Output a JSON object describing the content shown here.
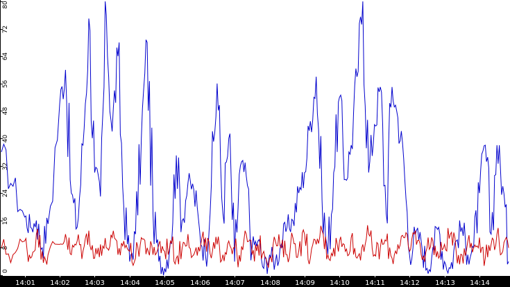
{
  "chart_data": {
    "type": "line",
    "ylim": [
      0,
      80
    ],
    "y_ticks": [
      0,
      8,
      16,
      24,
      32,
      40,
      48,
      56,
      64,
      72,
      80
    ],
    "x_range": [
      "14:00:20",
      "14:14:50"
    ],
    "x_ticks": [
      "14:01",
      "14:02",
      "14:03",
      "14:04",
      "14:05",
      "14:06",
      "14:07",
      "14:08",
      "14:09",
      "14:10",
      "14:11",
      "14:12",
      "14:13",
      "14:14"
    ],
    "grid": false,
    "background_color": "#ffffff",
    "axis_color": "#000000",
    "series": [
      {
        "color": "#0000cc",
        "x": [
          "14:00:20",
          "14:00:40",
          "14:01:00",
          "14:01:10",
          "14:01:20",
          "14:01:30",
          "14:01:40",
          "14:02:00",
          "14:02:10",
          "14:02:20",
          "14:02:30",
          "14:02:40",
          "14:02:50",
          "14:03:00",
          "14:03:10",
          "14:03:20",
          "14:03:30",
          "14:03:40",
          "14:03:50",
          "14:04:00",
          "14:04:10",
          "14:04:20",
          "14:04:30",
          "14:04:40",
          "14:04:50",
          "14:05:00",
          "14:05:10",
          "14:05:20",
          "14:05:30",
          "14:05:40",
          "14:05:50",
          "14:06:00",
          "14:06:10",
          "14:06:20",
          "14:06:30",
          "14:06:40",
          "14:06:50",
          "14:07:00",
          "14:07:10",
          "14:07:20",
          "14:07:30",
          "14:07:40",
          "14:07:50",
          "14:08:00",
          "14:08:10",
          "14:08:20",
          "14:08:30",
          "14:08:40",
          "14:08:50",
          "14:09:00",
          "14:09:10",
          "14:09:20",
          "14:09:30",
          "14:09:40",
          "14:09:50",
          "14:10:00",
          "14:10:10",
          "14:10:20",
          "14:10:30",
          "14:10:40",
          "14:10:50",
          "14:11:00",
          "14:11:10",
          "14:11:20",
          "14:11:30",
          "14:11:40",
          "14:11:50",
          "14:12:00",
          "14:12:10",
          "14:12:20",
          "14:12:30",
          "14:12:40",
          "14:12:50",
          "14:13:00",
          "14:13:10",
          "14:13:20",
          "14:13:30",
          "14:13:40",
          "14:13:50",
          "14:14:00",
          "14:14:10",
          "14:14:20",
          "14:14:30",
          "14:14:40",
          "14:14:50"
        ],
        "y": [
          36,
          26,
          17,
          14,
          16,
          8,
          15,
          50,
          60,
          24,
          14,
          38,
          75,
          30,
          23,
          76,
          42,
          64,
          20,
          4,
          12,
          40,
          68,
          18,
          4,
          2,
          10,
          35,
          16,
          27,
          25,
          13,
          6,
          26,
          56,
          18,
          40,
          4,
          32,
          29,
          8,
          10,
          2,
          6,
          4,
          9,
          14,
          16,
          24,
          30,
          45,
          58,
          22,
          6,
          30,
          52,
          28,
          38,
          58,
          80,
          30,
          44,
          55,
          18,
          55,
          46,
          34,
          6,
          12,
          10,
          2,
          8,
          14,
          4,
          2,
          10,
          14,
          6,
          8,
          24,
          38,
          12,
          38,
          26,
          4
        ]
      },
      {
        "color": "#cc0000",
        "x": [
          "14:00:20",
          "14:00:40",
          "14:01:00",
          "14:01:10",
          "14:01:20",
          "14:01:30",
          "14:01:40",
          "14:02:00",
          "14:02:10",
          "14:02:20",
          "14:02:30",
          "14:02:40",
          "14:02:50",
          "14:03:00",
          "14:03:10",
          "14:03:20",
          "14:03:30",
          "14:03:40",
          "14:03:50",
          "14:04:00",
          "14:04:10",
          "14:04:20",
          "14:04:30",
          "14:04:40",
          "14:04:50",
          "14:05:00",
          "14:05:10",
          "14:05:20",
          "14:05:30",
          "14:05:40",
          "14:05:50",
          "14:06:00",
          "14:06:10",
          "14:06:20",
          "14:06:30",
          "14:06:40",
          "14:06:50",
          "14:07:00",
          "14:07:10",
          "14:07:20",
          "14:07:30",
          "14:07:40",
          "14:07:50",
          "14:08:00",
          "14:08:10",
          "14:08:20",
          "14:08:30",
          "14:08:40",
          "14:08:50",
          "14:09:00",
          "14:09:10",
          "14:09:20",
          "14:09:30",
          "14:09:40",
          "14:09:50",
          "14:10:00",
          "14:10:10",
          "14:10:20",
          "14:10:30",
          "14:10:40",
          "14:10:50",
          "14:11:00",
          "14:11:10",
          "14:11:20",
          "14:11:30",
          "14:11:40",
          "14:11:50",
          "14:12:00",
          "14:12:10",
          "14:12:20",
          "14:12:30",
          "14:12:40",
          "14:12:50",
          "14:13:00",
          "14:13:10",
          "14:13:20",
          "14:13:30",
          "14:13:40",
          "14:13:50",
          "14:14:00",
          "14:14:10",
          "14:14:20",
          "14:14:30",
          "14:14:40",
          "14:14:50"
        ],
        "y": [
          8,
          6,
          10,
          5,
          12,
          7,
          6,
          9,
          12,
          6,
          10,
          7,
          13,
          5,
          9,
          8,
          11,
          6,
          10,
          7,
          5,
          11,
          8,
          6,
          9,
          7,
          10,
          5,
          8,
          12,
          6,
          7,
          11,
          5,
          9,
          6,
          10,
          8,
          4,
          12,
          6,
          9,
          7,
          5,
          10,
          8,
          6,
          11,
          7,
          12,
          5,
          9,
          13,
          6,
          8,
          10,
          7,
          11,
          5,
          9,
          12,
          6,
          8,
          10,
          5,
          9,
          11,
          7,
          13,
          6,
          8,
          10,
          5,
          9,
          12,
          7,
          6,
          10,
          8,
          11,
          5,
          9,
          12,
          7,
          8
        ]
      }
    ]
  }
}
